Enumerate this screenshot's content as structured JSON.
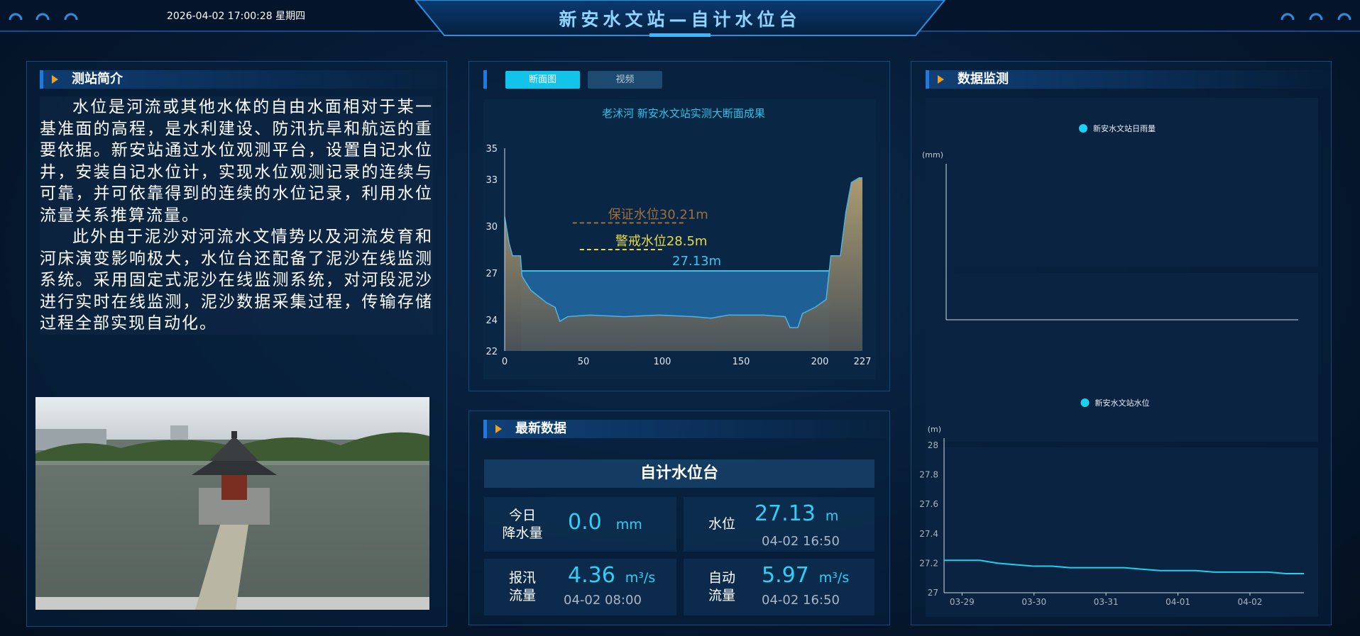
{
  "header": {
    "title": "新安水文站—自计水位台",
    "datetime": "2026-04-02 17:00:28 星期四"
  },
  "intro": {
    "title": "测站简介",
    "paragraphs": [
      "水位是河流或其他水体的自由水面相对于某一基准面的高程，是水利建设、防汛抗旱和航运的重要依据。新安站通过水位观测平台，设置自记水位井，安装自记水位计，实现水位观测记录的连续与可靠，并可依靠得到的连续的水位记录，利用水位流量关系推算流量。",
      "此外由于泥沙对河流水文情势以及河流发育和河床演变影响极大，水位台还配备了泥沙在线监测系统。采用固定式泥沙在线监测系统，对河段泥沙进行实时在线监测，泥沙数据采集过程，传输存储过程全部实现自动化。"
    ]
  },
  "tabs": [
    "断面图",
    "视频"
  ],
  "latest": {
    "title": "最新数据",
    "subtitle": "自计水位台",
    "cells": [
      {
        "label": "今日\n降水量",
        "value": "0.0",
        "unit": "mm"
      },
      {
        "label": "水位",
        "value": "27.13",
        "unit": "m",
        "time": "04-02 16:50"
      },
      {
        "label": "报汛\n流量",
        "value": "4.36",
        "unit": "m³/s",
        "time": "04-02 08:00"
      },
      {
        "label": "自动\n流量",
        "value": "5.97",
        "unit": "m³/s",
        "time": "04-02 16:50"
      }
    ]
  },
  "monitor": {
    "title": "数据监测"
  },
  "chart_data": [
    {
      "type": "area",
      "title": "老沭河 新安水文站实测大断面成果",
      "x": [
        0,
        2.8,
        5,
        10,
        11,
        16.5,
        26.5,
        32,
        35,
        40,
        54,
        76,
        98,
        120,
        131,
        142,
        164,
        178,
        181,
        186,
        189,
        197,
        204,
        207,
        213,
        216.5,
        220,
        225,
        227
      ],
      "values": [
        30.6,
        28.9,
        28.1,
        28.1,
        26.8,
        25.9,
        25.1,
        24.8,
        23.9,
        24.2,
        24.3,
        24.2,
        24.3,
        24.2,
        24.1,
        24.3,
        24.3,
        24.2,
        23.5,
        23.5,
        24.4,
        24.8,
        25.3,
        28.1,
        28.1,
        30.9,
        32.8,
        33.1,
        33.1
      ],
      "color": "#4fb3e0",
      "xlim": [
        0,
        227
      ],
      "ylim": [
        22,
        35
      ],
      "xticks": [
        0,
        50,
        100,
        150,
        200,
        227
      ],
      "yticks": [
        22,
        24,
        27,
        30,
        33,
        35
      ],
      "water_level": {
        "value": 27.13,
        "label": "27.13m",
        "color": "#1e5f96"
      },
      "reference_lines": [
        {
          "value": 30.21,
          "label": "保证水位30.21m",
          "color": "#a0703a"
        },
        {
          "value": 28.5,
          "label": "警戒水位28.5m",
          "color": "#e8d84a"
        }
      ]
    },
    {
      "type": "bar",
      "y_label": "(mm)",
      "categories": [],
      "series": [
        {
          "name": "新安水文站日雨量",
          "color": "#19d3f0",
          "values": []
        }
      ]
    },
    {
      "type": "line",
      "y_label": "(m)",
      "categories": [
        null,
        "03-29",
        null,
        null,
        null,
        "03-30",
        null,
        null,
        null,
        "03-31",
        null,
        null,
        null,
        "04-01",
        null,
        null,
        null,
        "04-02",
        null,
        null,
        null
      ],
      "series": [
        {
          "name": "新安水文站水位",
          "color": "#19d3f0",
          "values": [
            27.22,
            27.22,
            27.22,
            27.2,
            27.19,
            27.18,
            27.18,
            27.17,
            27.17,
            27.17,
            27.17,
            27.16,
            27.15,
            27.15,
            27.15,
            27.14,
            27.14,
            27.14,
            27.14,
            27.13,
            27.13
          ]
        }
      ],
      "ylim": [
        27,
        28
      ],
      "yticks": [
        27,
        27.2,
        27.4,
        27.6,
        27.8,
        28
      ]
    }
  ]
}
